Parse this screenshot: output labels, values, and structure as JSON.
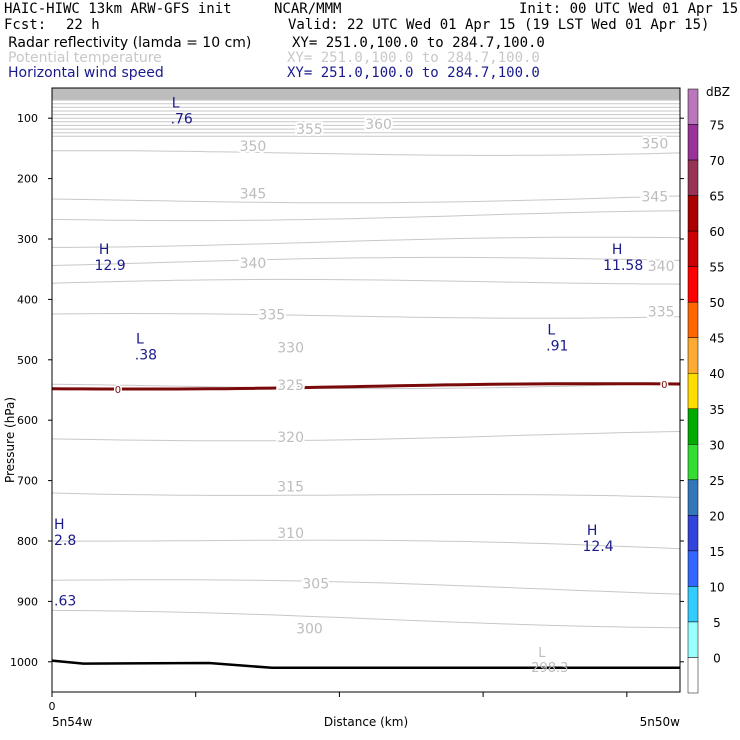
{
  "header": {
    "model": "HAIC-HIWC 13km ARW-GFS init",
    "org": "NCAR/MMM",
    "init": "Init: 00 UTC Wed 01 Apr 15",
    "fcst_label": "Fcst:",
    "fcst_value": "22 h",
    "valid": "Valid: 22 UTC Wed 01 Apr 15 (19 LST Wed 01 Apr 15)",
    "fields": [
      {
        "name": "Radar reflectivity (lamda = 10 cm)",
        "xy": "XY= 251.0,100.0 to 284.7,100.0",
        "color": "#000000"
      },
      {
        "name": "Potential temperature",
        "xy": "XY= 251.0,100.0 to 284.7,100.0",
        "color": "#c8c8c8"
      },
      {
        "name": "Horizontal wind speed",
        "xy": "XY= 251.0,100.0 to 284.7,100.0",
        "color": "#1a1a8c"
      }
    ]
  },
  "chart_data": {
    "type": "contour-cross-section",
    "xlabel": "Distance (km)",
    "ylabel": "Pressure (hPa)",
    "x_tick_labels": [
      "0"
    ],
    "x_end_labels": [
      "5n54w",
      "5n50w"
    ],
    "y_ticks": [
      100,
      200,
      300,
      400,
      500,
      600,
      700,
      800,
      900,
      1000
    ],
    "ylim": [
      1050,
      50
    ],
    "theta_labels": [
      {
        "value": "360",
        "x": 0.52,
        "p": 110
      },
      {
        "value": "355",
        "x": 0.41,
        "p": 118
      },
      {
        "value": "350",
        "x": 0.32,
        "p": 146
      },
      {
        "value": "350",
        "x": 0.96,
        "p": 142
      },
      {
        "value": "345",
        "x": 0.32,
        "p": 225
      },
      {
        "value": "345",
        "x": 0.96,
        "p": 230
      },
      {
        "value": "340",
        "x": 0.32,
        "p": 340
      },
      {
        "value": "340",
        "x": 0.97,
        "p": 345
      },
      {
        "value": "335",
        "x": 0.35,
        "p": 425
      },
      {
        "value": "335",
        "x": 0.97,
        "p": 420
      },
      {
        "value": "330",
        "x": 0.38,
        "p": 480
      },
      {
        "value": "325",
        "x": 0.38,
        "p": 542
      },
      {
        "value": "320",
        "x": 0.38,
        "p": 628
      },
      {
        "value": "315",
        "x": 0.38,
        "p": 710
      },
      {
        "value": "310",
        "x": 0.38,
        "p": 787
      },
      {
        "value": "305",
        "x": 0.42,
        "p": 870
      },
      {
        "value": "300",
        "x": 0.41,
        "p": 945
      }
    ],
    "wind_extrema": [
      {
        "type": "L",
        "value": ".76",
        "x": 0.197,
        "p": 82
      },
      {
        "type": "H",
        "value": "12.9",
        "x": 0.083,
        "p": 325
      },
      {
        "type": "H",
        "value": "11.58",
        "x": 0.9,
        "p": 325
      },
      {
        "type": "L",
        "value": ".38",
        "x": 0.14,
        "p": 473
      },
      {
        "type": "L",
        "value": ".91",
        "x": 0.795,
        "p": 458
      },
      {
        "type": "H",
        "value": "2.8",
        "x": 0.0,
        "p": 780
      },
      {
        "type": "H",
        "value": "12.4",
        "x": 0.86,
        "p": 790
      },
      {
        "type": "",
        "value": ".63",
        "x": 0.0,
        "p": 880
      }
    ],
    "theta_min": {
      "type": "L",
      "value": "298.3",
      "x": 0.78,
      "p": 1005
    },
    "reflectivity_zero_labels": [
      "0",
      "0"
    ],
    "colorbar": {
      "unit": "dBZ",
      "levels": [
        0,
        5,
        10,
        15,
        20,
        25,
        30,
        35,
        40,
        45,
        50,
        55,
        60,
        65,
        70,
        75
      ],
      "colors": [
        "#ffffff",
        "#99ffff",
        "#33ccff",
        "#3366ff",
        "#3344dd",
        "#3377bb",
        "#33dd33",
        "#00aa00",
        "#ffdd00",
        "#ffaa33",
        "#ff6600",
        "#ff0000",
        "#cc0000",
        "#aa0000",
        "#993355",
        "#993399",
        "#bb77bb"
      ]
    }
  }
}
